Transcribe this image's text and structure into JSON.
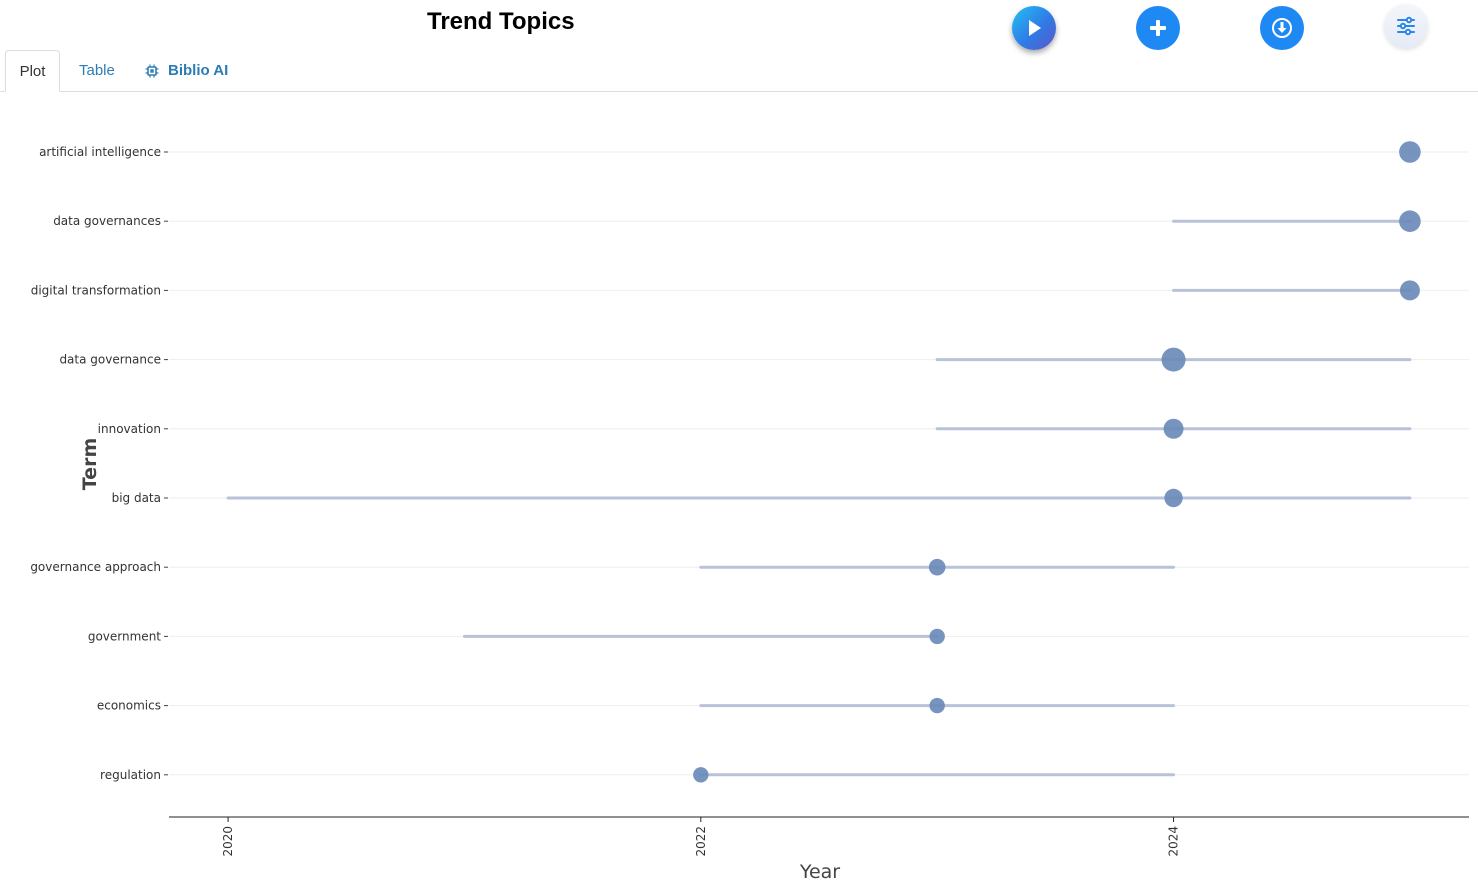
{
  "header": {
    "title": "Trend Topics"
  },
  "tabs": [
    {
      "label": "Plot",
      "active": true
    },
    {
      "label": "Table",
      "active": false
    },
    {
      "label": "Biblio AI",
      "active": false
    }
  ],
  "toolbar": {
    "icons": [
      "play-icon",
      "plus-icon",
      "download-icon",
      "sliders-icon"
    ]
  },
  "colors": {
    "accent": "#1e88f3",
    "tab_link": "#2c7db5",
    "marker": "#6a8bb8",
    "range_line": "#b8c2d8"
  },
  "chart_data": {
    "type": "scatter",
    "xlabel": "Year",
    "ylabel": "Term",
    "xlim": [
      2019.75,
      2025.25
    ],
    "xticks": [
      "2020",
      "2022",
      "2024"
    ],
    "terms": [
      {
        "term": "artificial intelligence",
        "q1": 2025,
        "median": 2025,
        "q3": 2025,
        "freq": 10
      },
      {
        "term": "data governances",
        "q1": 2024,
        "median": 2025,
        "q3": 2025,
        "freq": 10
      },
      {
        "term": "digital transformation",
        "q1": 2024,
        "median": 2025,
        "q3": 2025,
        "freq": 8
      },
      {
        "term": "data governance",
        "q1": 2023,
        "median": 2024,
        "q3": 2025,
        "freq": 14
      },
      {
        "term": "innovation",
        "q1": 2023,
        "median": 2024,
        "q3": 2025,
        "freq": 8
      },
      {
        "term": "big data",
        "q1": 2020,
        "median": 2024,
        "q3": 2025,
        "freq": 6
      },
      {
        "term": "governance approach",
        "q1": 2022,
        "median": 2023,
        "q3": 2024,
        "freq": 4
      },
      {
        "term": "government",
        "q1": 2021,
        "median": 2023,
        "q3": 2023,
        "freq": 3
      },
      {
        "term": "economics",
        "q1": 2022,
        "median": 2023,
        "q3": 2024,
        "freq": 3
      },
      {
        "term": "regulation",
        "q1": 2022,
        "median": 2022,
        "q3": 2024,
        "freq": 3
      }
    ]
  }
}
